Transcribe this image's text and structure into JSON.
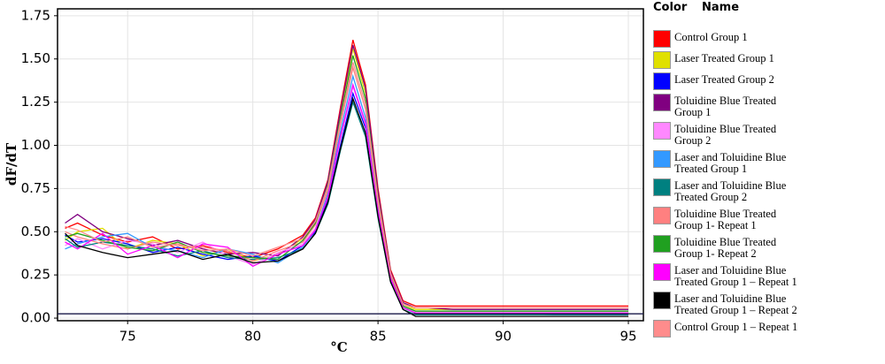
{
  "chart_data": {
    "type": "line",
    "y_label": "dF/dT",
    "x_label": "°C",
    "legend_headers": [
      "Color",
      "Name"
    ],
    "x": [
      72.5,
      73,
      74,
      75,
      76,
      77,
      78,
      79,
      80,
      81,
      82,
      82.5,
      83,
      83.5,
      84,
      84.5,
      85,
      85.5,
      86,
      86.5,
      87,
      88,
      90,
      92,
      95
    ],
    "xlim": [
      72.2,
      95.6
    ],
    "xticks": [
      75,
      80,
      85,
      90,
      95
    ],
    "ylim": [
      -0.015,
      1.79
    ],
    "yticks": [
      {
        "value": 0,
        "label": "0.00"
      },
      {
        "value": 0.25,
        "label": "0.25"
      },
      {
        "value": 0.5,
        "label": "0.50"
      },
      {
        "value": 0.75,
        "label": "0.75"
      },
      {
        "value": 1,
        "label": "1.00"
      },
      {
        "value": 1.25,
        "label": "1.25"
      },
      {
        "value": 1.5,
        "label": "1.50"
      },
      {
        "value": 1.75,
        "label": "1.75"
      }
    ],
    "grid": true,
    "threshold": 0.025,
    "series": [
      {
        "name": "Control Group 1",
        "color": "#ff0000",
        "values": [
          0.52,
          0.55,
          0.48,
          0.44,
          0.47,
          0.4,
          0.42,
          0.38,
          0.35,
          0.4,
          0.48,
          0.58,
          0.8,
          1.22,
          1.61,
          1.35,
          0.75,
          0.28,
          0.1,
          0.07,
          0.07,
          0.07,
          0.07,
          0.07,
          0.07
        ]
      },
      {
        "name": "Laser Treated Group 1",
        "color": "#e0e000",
        "values": [
          0.45,
          0.5,
          0.52,
          0.4,
          0.45,
          0.43,
          0.36,
          0.4,
          0.33,
          0.37,
          0.46,
          0.56,
          0.78,
          1.18,
          1.56,
          1.3,
          0.72,
          0.26,
          0.08,
          0.05,
          0.05,
          0.05,
          0.05,
          0.05,
          0.05
        ]
      },
      {
        "name": "Laser Treated Group 2",
        "color": "#0000ff",
        "values": [
          0.48,
          0.44,
          0.46,
          0.43,
          0.38,
          0.41,
          0.37,
          0.34,
          0.36,
          0.33,
          0.42,
          0.5,
          0.68,
          1.0,
          1.3,
          1.1,
          0.6,
          0.22,
          0.06,
          0.03,
          0.03,
          0.03,
          0.03,
          0.02,
          0.02
        ]
      },
      {
        "name": "Toluidine Blue Treated Group 1",
        "color": "#800080",
        "values": [
          0.55,
          0.6,
          0.5,
          0.46,
          0.42,
          0.45,
          0.4,
          0.37,
          0.38,
          0.36,
          0.47,
          0.57,
          0.79,
          1.2,
          1.58,
          1.33,
          0.73,
          0.27,
          0.09,
          0.06,
          0.06,
          0.05,
          0.05,
          0.05,
          0.05
        ]
      },
      {
        "name": "Toluidine Blue Treated Group 2",
        "color": "#ff88ff",
        "values": [
          0.42,
          0.46,
          0.4,
          0.45,
          0.43,
          0.38,
          0.44,
          0.36,
          0.31,
          0.38,
          0.43,
          0.52,
          0.7,
          1.04,
          1.34,
          1.12,
          0.62,
          0.23,
          0.07,
          0.04,
          0.04,
          0.04,
          0.04,
          0.04,
          0.04
        ]
      },
      {
        "name": "Laser and Toluidine Blue Treated Group 1",
        "color": "#3399ff",
        "values": [
          0.4,
          0.43,
          0.47,
          0.49,
          0.41,
          0.39,
          0.35,
          0.4,
          0.37,
          0.32,
          0.41,
          0.51,
          0.72,
          1.08,
          1.4,
          1.16,
          0.64,
          0.24,
          0.06,
          0.03,
          0.03,
          0.03,
          0.03,
          0.03,
          0.03
        ]
      },
      {
        "name": "Laser and Toluidine Blue Treated Group 2",
        "color": "#008080",
        "values": [
          0.46,
          0.41,
          0.44,
          0.42,
          0.4,
          0.36,
          0.39,
          0.35,
          0.34,
          0.35,
          0.4,
          0.49,
          0.66,
          0.97,
          1.25,
          1.05,
          0.58,
          0.21,
          0.05,
          0.02,
          0.02,
          0.02,
          0.02,
          0.02,
          0.02
        ]
      },
      {
        "name": "Toluidine Blue Treated Group 1- Repeat 1",
        "color": "#ff8080",
        "values": [
          0.5,
          0.47,
          0.43,
          0.4,
          0.44,
          0.42,
          0.41,
          0.39,
          0.33,
          0.39,
          0.44,
          0.54,
          0.74,
          1.12,
          1.45,
          1.21,
          0.67,
          0.25,
          0.07,
          0.04,
          0.04,
          0.04,
          0.04,
          0.04,
          0.04
        ]
      },
      {
        "name": "Toluidine Blue Treated Group 1- Repeat 2",
        "color": "#20a020",
        "values": [
          0.47,
          0.49,
          0.45,
          0.41,
          0.39,
          0.44,
          0.38,
          0.36,
          0.35,
          0.34,
          0.45,
          0.55,
          0.77,
          1.16,
          1.52,
          1.27,
          0.7,
          0.26,
          0.07,
          0.04,
          0.04,
          0.04,
          0.04,
          0.04,
          0.04
        ]
      },
      {
        "name": "Laser and Toluidine Blue Treated Group 1 – Repeat 1",
        "color": "#ff00ff",
        "values": [
          0.44,
          0.4,
          0.49,
          0.37,
          0.42,
          0.35,
          0.43,
          0.41,
          0.3,
          0.37,
          0.42,
          0.51,
          0.7,
          1.05,
          1.35,
          1.13,
          0.62,
          0.23,
          0.06,
          0.03,
          0.03,
          0.03,
          0.03,
          0.03,
          0.03
        ]
      },
      {
        "name": "Laser and Toluidine Blue Treated Group 1 – Repeat 2",
        "color": "#000000",
        "values": [
          0.49,
          0.42,
          0.38,
          0.35,
          0.37,
          0.39,
          0.34,
          0.37,
          0.32,
          0.33,
          0.4,
          0.49,
          0.67,
          0.98,
          1.27,
          1.07,
          0.59,
          0.21,
          0.05,
          0.01,
          0.01,
          0.01,
          0.01,
          0.01,
          0.01
        ]
      },
      {
        "name": "Control Group 1 – Repeat 1",
        "color": "#ff8c8c",
        "values": [
          0.53,
          0.51,
          0.44,
          0.47,
          0.41,
          0.43,
          0.39,
          0.4,
          0.36,
          0.41,
          0.46,
          0.56,
          0.76,
          1.14,
          1.48,
          1.24,
          0.69,
          0.26,
          0.08,
          0.06,
          0.06,
          0.06,
          0.06,
          0.06,
          0.06
        ]
      }
    ]
  }
}
